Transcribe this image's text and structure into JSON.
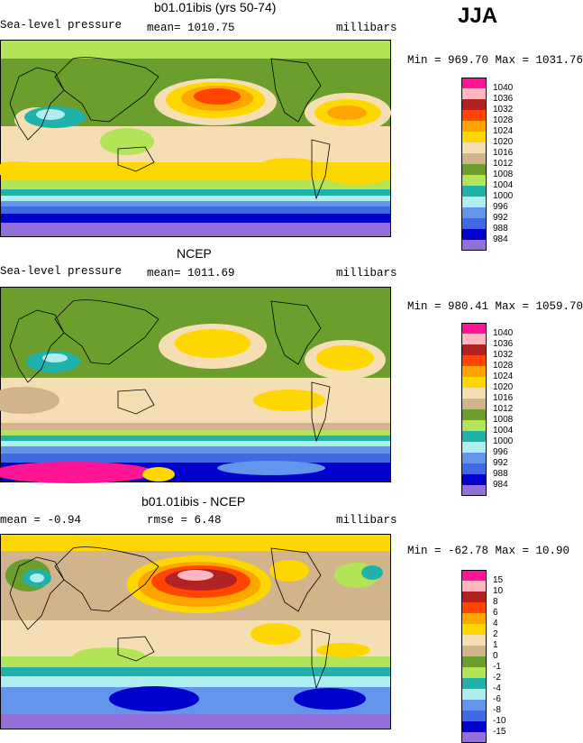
{
  "season": "JJA",
  "chart_data": [
    {
      "type": "heatmap",
      "title": "b01.01ibis (yrs 50-74)",
      "left_label": "Sea-level pressure",
      "center_label": "mean= 1010.75",
      "right_label": "millibars",
      "stats": "Min = 969.70 Max = 1031.76",
      "mean": 1010.75,
      "min": 969.7,
      "max": 1031.76,
      "units": "millibars",
      "legend_levels": [
        "1040",
        "1036",
        "1032",
        "1028",
        "1024",
        "1020",
        "1016",
        "1012",
        "1008",
        "1004",
        "1000",
        "996",
        "992",
        "988",
        "984"
      ],
      "legend_colors": [
        "#ff1493",
        "#ffb6c1",
        "#b22222",
        "#ff4500",
        "#ffa500",
        "#ffd700",
        "#f5deb3",
        "#d2b48c",
        "#6b9e2c",
        "#b3e356",
        "#20b2aa",
        "#afeeee",
        "#6495ed",
        "#4169e1",
        "#0000cd",
        "#9370db"
      ]
    },
    {
      "type": "heatmap",
      "title": "NCEP",
      "left_label": "Sea-level pressure",
      "center_label": "mean= 1011.69",
      "right_label": "millibars",
      "stats": "Min = 980.41 Max = 1059.70",
      "mean": 1011.69,
      "min": 980.41,
      "max": 1059.7,
      "units": "millibars",
      "legend_levels": [
        "1040",
        "1036",
        "1032",
        "1028",
        "1024",
        "1020",
        "1016",
        "1012",
        "1008",
        "1004",
        "1000",
        "996",
        "992",
        "988",
        "984"
      ],
      "legend_colors": [
        "#ff1493",
        "#ffb6c1",
        "#b22222",
        "#ff4500",
        "#ffa500",
        "#ffd700",
        "#f5deb3",
        "#d2b48c",
        "#6b9e2c",
        "#b3e356",
        "#20b2aa",
        "#afeeee",
        "#6495ed",
        "#4169e1",
        "#0000cd",
        "#9370db"
      ]
    },
    {
      "type": "heatmap",
      "title": "b01.01ibis - NCEP",
      "left_label": "mean =   -0.94",
      "center_label": "rmse =    6.48",
      "right_label": "millibars",
      "stats": "Min = -62.78 Max =  10.90",
      "mean": -0.94,
      "rmse": 6.48,
      "min": -62.78,
      "max": 10.9,
      "units": "millibars",
      "legend_levels": [
        "15",
        "10",
        "8",
        "6",
        "4",
        "2",
        "1",
        "0",
        "-1",
        "-2",
        "-4",
        "-6",
        "-8",
        "-10",
        "-15"
      ],
      "legend_colors": [
        "#ff1493",
        "#ffb6c1",
        "#b22222",
        "#ff4500",
        "#ffa500",
        "#ffd700",
        "#f5deb3",
        "#d2b48c",
        "#6b9e2c",
        "#b3e356",
        "#20b2aa",
        "#afeeee",
        "#6495ed",
        "#4169e1",
        "#0000cd",
        "#9370db"
      ]
    }
  ]
}
